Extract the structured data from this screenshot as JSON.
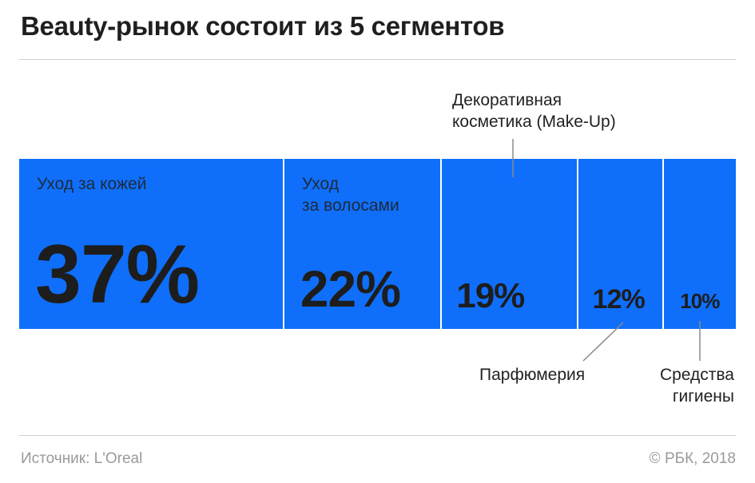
{
  "title": "Beauty-рынок состоит из 5 сегментов",
  "source": "Источник: L'Oreal",
  "credit": "© РБК, 2018",
  "colors": {
    "bar": "#0f6ffb",
    "divider": "#ffffff",
    "leader": "#8a8a8a"
  },
  "chart_data": {
    "type": "bar",
    "subtype": "stacked-100-horizontal",
    "title": "Beauty-рынок состоит из 5 сегментов",
    "categories": [
      "Уход за кожей",
      "Уход\nза волосами",
      "Декоративная\nкосметика (Make-Up)",
      "Парфюмерия",
      "Средства\nгигиены"
    ],
    "values": [
      37,
      22,
      19,
      12,
      10
    ],
    "value_labels": [
      "37%",
      "22%",
      "19%",
      "12%",
      "10%"
    ],
    "label_positions": [
      "inside",
      "inside",
      "above",
      "below",
      "below"
    ],
    "unit": "%"
  }
}
